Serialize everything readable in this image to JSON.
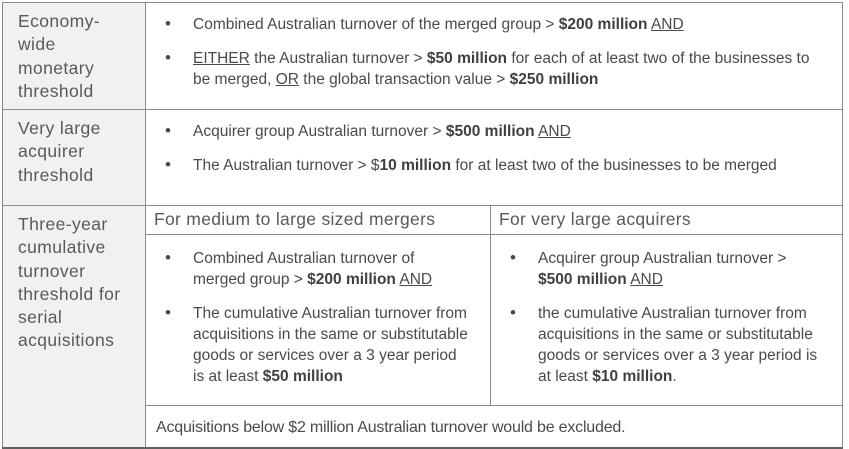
{
  "colors": {
    "header_bg": "#f1f1f1",
    "border": "#8a8a8a",
    "header_text": "#595959",
    "body_text": "#4a4a4a"
  },
  "rows": {
    "economy": {
      "label": "Economy-wide monetary threshold",
      "bullets": [
        [
          {
            "t": "Combined Australian turnover of the merged group > "
          },
          {
            "t": "$200 million",
            "b": true
          },
          {
            "t": " "
          },
          {
            "t": "AND",
            "u": true
          }
        ],
        [
          {
            "t": "EITHER",
            "u": true
          },
          {
            "t": " the Australian turnover > "
          },
          {
            "t": "$50 million",
            "b": true
          },
          {
            "t": " for each of at least two of the businesses to be merged, "
          },
          {
            "t": "OR",
            "u": true
          },
          {
            "t": " the global transaction value > "
          },
          {
            "t": "$250 million",
            "b": true
          }
        ]
      ]
    },
    "very_large": {
      "label": "Very large acquirer threshold",
      "bullets": [
        [
          {
            "t": "Acquirer group Australian turnover > "
          },
          {
            "t": "$500 million",
            "b": true
          },
          {
            "t": " "
          },
          {
            "t": "AND",
            "u": true
          }
        ],
        [
          {
            "t": "The Australian turnover > $"
          },
          {
            "t": "10 million",
            "b": true
          },
          {
            "t": " for at least two of the businesses to be merged"
          }
        ]
      ]
    },
    "three_year": {
      "label": "Three-year cumulative turnover threshold for serial acquisitions",
      "col1": {
        "header": "For medium to large sized mergers",
        "bullets": [
          [
            {
              "t": "Combined Australian turnover of merged group > "
            },
            {
              "t": "$200 million",
              "b": true
            },
            {
              "t": " "
            },
            {
              "t": "AND",
              "u": true
            }
          ],
          [
            {
              "t": "The cumulative Australian turnover from acquisitions in the same or substitutable goods or services over a 3 year period is at least "
            },
            {
              "t": "$50 million",
              "b": true
            }
          ]
        ]
      },
      "col2": {
        "header": "For very large acquirers",
        "bullets": [
          [
            {
              "t": "Acquirer group Australian turnover > "
            },
            {
              "t": "$500 million",
              "b": true
            },
            {
              "t": " "
            },
            {
              "t": "AND",
              "u": true
            }
          ],
          [
            {
              "t": "the cumulative Australian turnover from acquisitions in the same or substitutable goods or services over a 3 year period is at least "
            },
            {
              "t": "$10 million",
              "b": true
            },
            {
              "t": "."
            }
          ]
        ]
      },
      "note": "Acquisitions below $2 million Australian turnover would be excluded."
    }
  }
}
